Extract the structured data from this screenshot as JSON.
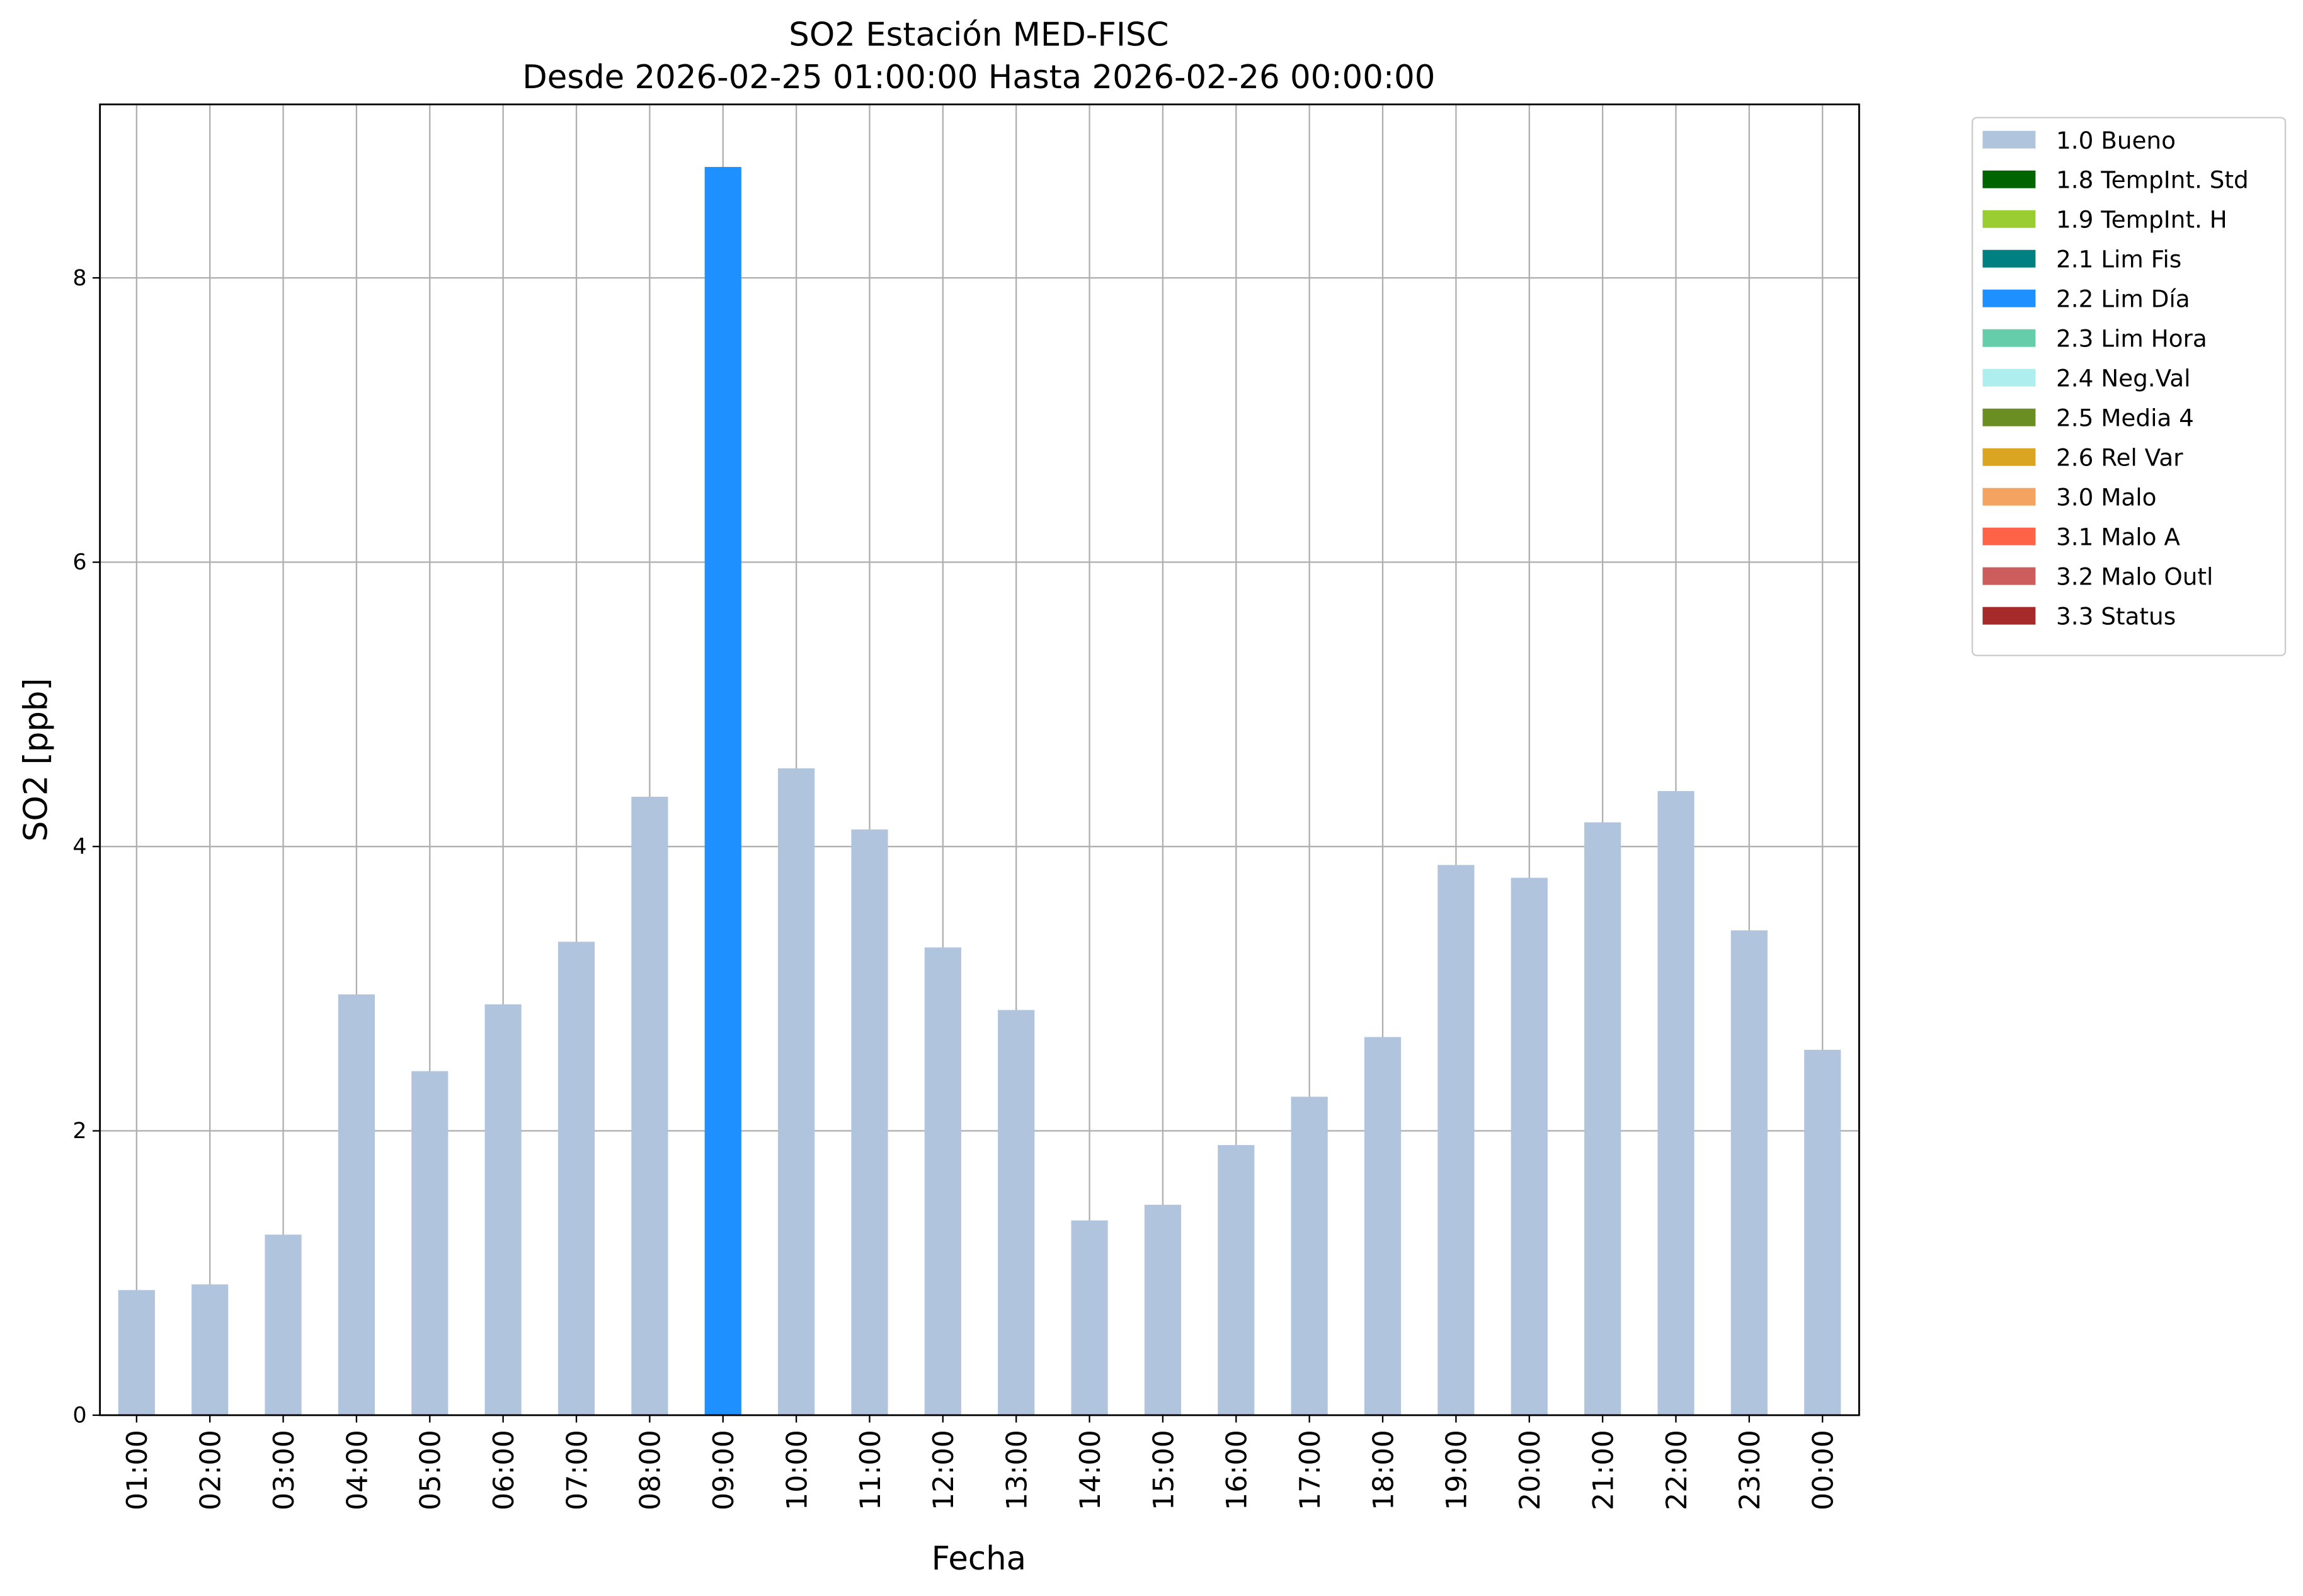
{
  "chart_data": {
    "type": "bar",
    "stacked": true,
    "title": "SO2 Estación MED-FISC",
    "subtitle": "Desde 2026-02-25 01:00:00 Hasta 2026-02-26 00:00:00",
    "x_label": "Fecha",
    "y_label": "SO2 [ppb]",
    "categories": [
      "01:00",
      "02:00",
      "03:00",
      "04:00",
      "05:00",
      "06:00",
      "07:00",
      "08:00",
      "09:00",
      "10:00",
      "11:00",
      "12:00",
      "13:00",
      "14:00",
      "15:00",
      "16:00",
      "17:00",
      "18:00",
      "19:00",
      "20:00",
      "21:00",
      "22:00",
      "23:00",
      "00:00"
    ],
    "series": [
      {
        "name": "1.0 Bueno",
        "color": "#b0c4de",
        "values": [
          0.88,
          0.92,
          1.27,
          2.96,
          2.42,
          2.89,
          3.33,
          4.35,
          null,
          4.55,
          4.12,
          3.29,
          2.85,
          1.37,
          1.48,
          1.9,
          2.24,
          2.66,
          3.87,
          3.78,
          4.17,
          4.39,
          3.41,
          2.57
        ]
      },
      {
        "name": "1.8 TempInt. Std",
        "color": "#006400",
        "values": [
          null,
          null,
          null,
          null,
          null,
          null,
          null,
          null,
          null,
          null,
          null,
          null,
          null,
          null,
          null,
          null,
          null,
          null,
          null,
          null,
          null,
          null,
          null,
          null
        ]
      },
      {
        "name": "1.9 TempInt. H",
        "color": "#9acd32",
        "values": [
          null,
          null,
          null,
          null,
          null,
          null,
          null,
          null,
          null,
          null,
          null,
          null,
          null,
          null,
          null,
          null,
          null,
          null,
          null,
          null,
          null,
          null,
          null,
          null
        ]
      },
      {
        "name": "2.1 Lim Fis",
        "color": "#008080",
        "values": [
          null,
          null,
          null,
          null,
          null,
          null,
          null,
          null,
          null,
          null,
          null,
          null,
          null,
          null,
          null,
          null,
          null,
          null,
          null,
          null,
          null,
          null,
          null,
          null
        ]
      },
      {
        "name": "2.2 Lim Día",
        "color": "#1e90ff",
        "values": [
          null,
          null,
          null,
          null,
          null,
          null,
          null,
          null,
          8.78,
          null,
          null,
          null,
          null,
          null,
          null,
          null,
          null,
          null,
          null,
          null,
          null,
          null,
          null,
          null
        ]
      },
      {
        "name": "2.3 Lim Hora",
        "color": "#66cdaa",
        "values": [
          null,
          null,
          null,
          null,
          null,
          null,
          null,
          null,
          null,
          null,
          null,
          null,
          null,
          null,
          null,
          null,
          null,
          null,
          null,
          null,
          null,
          null,
          null,
          null
        ]
      },
      {
        "name": "2.4 Neg.Val",
        "color": "#afeeee",
        "values": [
          null,
          null,
          null,
          null,
          null,
          null,
          null,
          null,
          null,
          null,
          null,
          null,
          null,
          null,
          null,
          null,
          null,
          null,
          null,
          null,
          null,
          null,
          null,
          null
        ]
      },
      {
        "name": "2.5 Media 4",
        "color": "#6b8e23",
        "values": [
          null,
          null,
          null,
          null,
          null,
          null,
          null,
          null,
          null,
          null,
          null,
          null,
          null,
          null,
          null,
          null,
          null,
          null,
          null,
          null,
          null,
          null,
          null,
          null
        ]
      },
      {
        "name": "2.6 Rel Var",
        "color": "#daa520",
        "values": [
          null,
          null,
          null,
          null,
          null,
          null,
          null,
          null,
          null,
          null,
          null,
          null,
          null,
          null,
          null,
          null,
          null,
          null,
          null,
          null,
          null,
          null,
          null,
          null
        ]
      },
      {
        "name": "3.0 Malo",
        "color": "#f4a460",
        "values": [
          null,
          null,
          null,
          null,
          null,
          null,
          null,
          null,
          null,
          null,
          null,
          null,
          null,
          null,
          null,
          null,
          null,
          null,
          null,
          null,
          null,
          null,
          null,
          null
        ]
      },
      {
        "name": "3.1 Malo A",
        "color": "#ff6347",
        "values": [
          null,
          null,
          null,
          null,
          null,
          null,
          null,
          null,
          null,
          null,
          null,
          null,
          null,
          null,
          null,
          null,
          null,
          null,
          null,
          null,
          null,
          null,
          null,
          null
        ]
      },
      {
        "name": "3.2 Malo Outl",
        "color": "#cd5c5c",
        "values": [
          null,
          null,
          null,
          null,
          null,
          null,
          null,
          null,
          null,
          null,
          null,
          null,
          null,
          null,
          null,
          null,
          null,
          null,
          null,
          null,
          null,
          null,
          null,
          null
        ]
      },
      {
        "name": "3.3 Status",
        "color": "#a52a2a",
        "values": [
          null,
          null,
          null,
          null,
          null,
          null,
          null,
          null,
          null,
          null,
          null,
          null,
          null,
          null,
          null,
          null,
          null,
          null,
          null,
          null,
          null,
          null,
          null,
          null
        ]
      }
    ],
    "ylim": [
      0,
      9.22
    ],
    "yticks": [
      0,
      2,
      4,
      6,
      8
    ],
    "grid": true,
    "legend": "outside-upper-right"
  }
}
